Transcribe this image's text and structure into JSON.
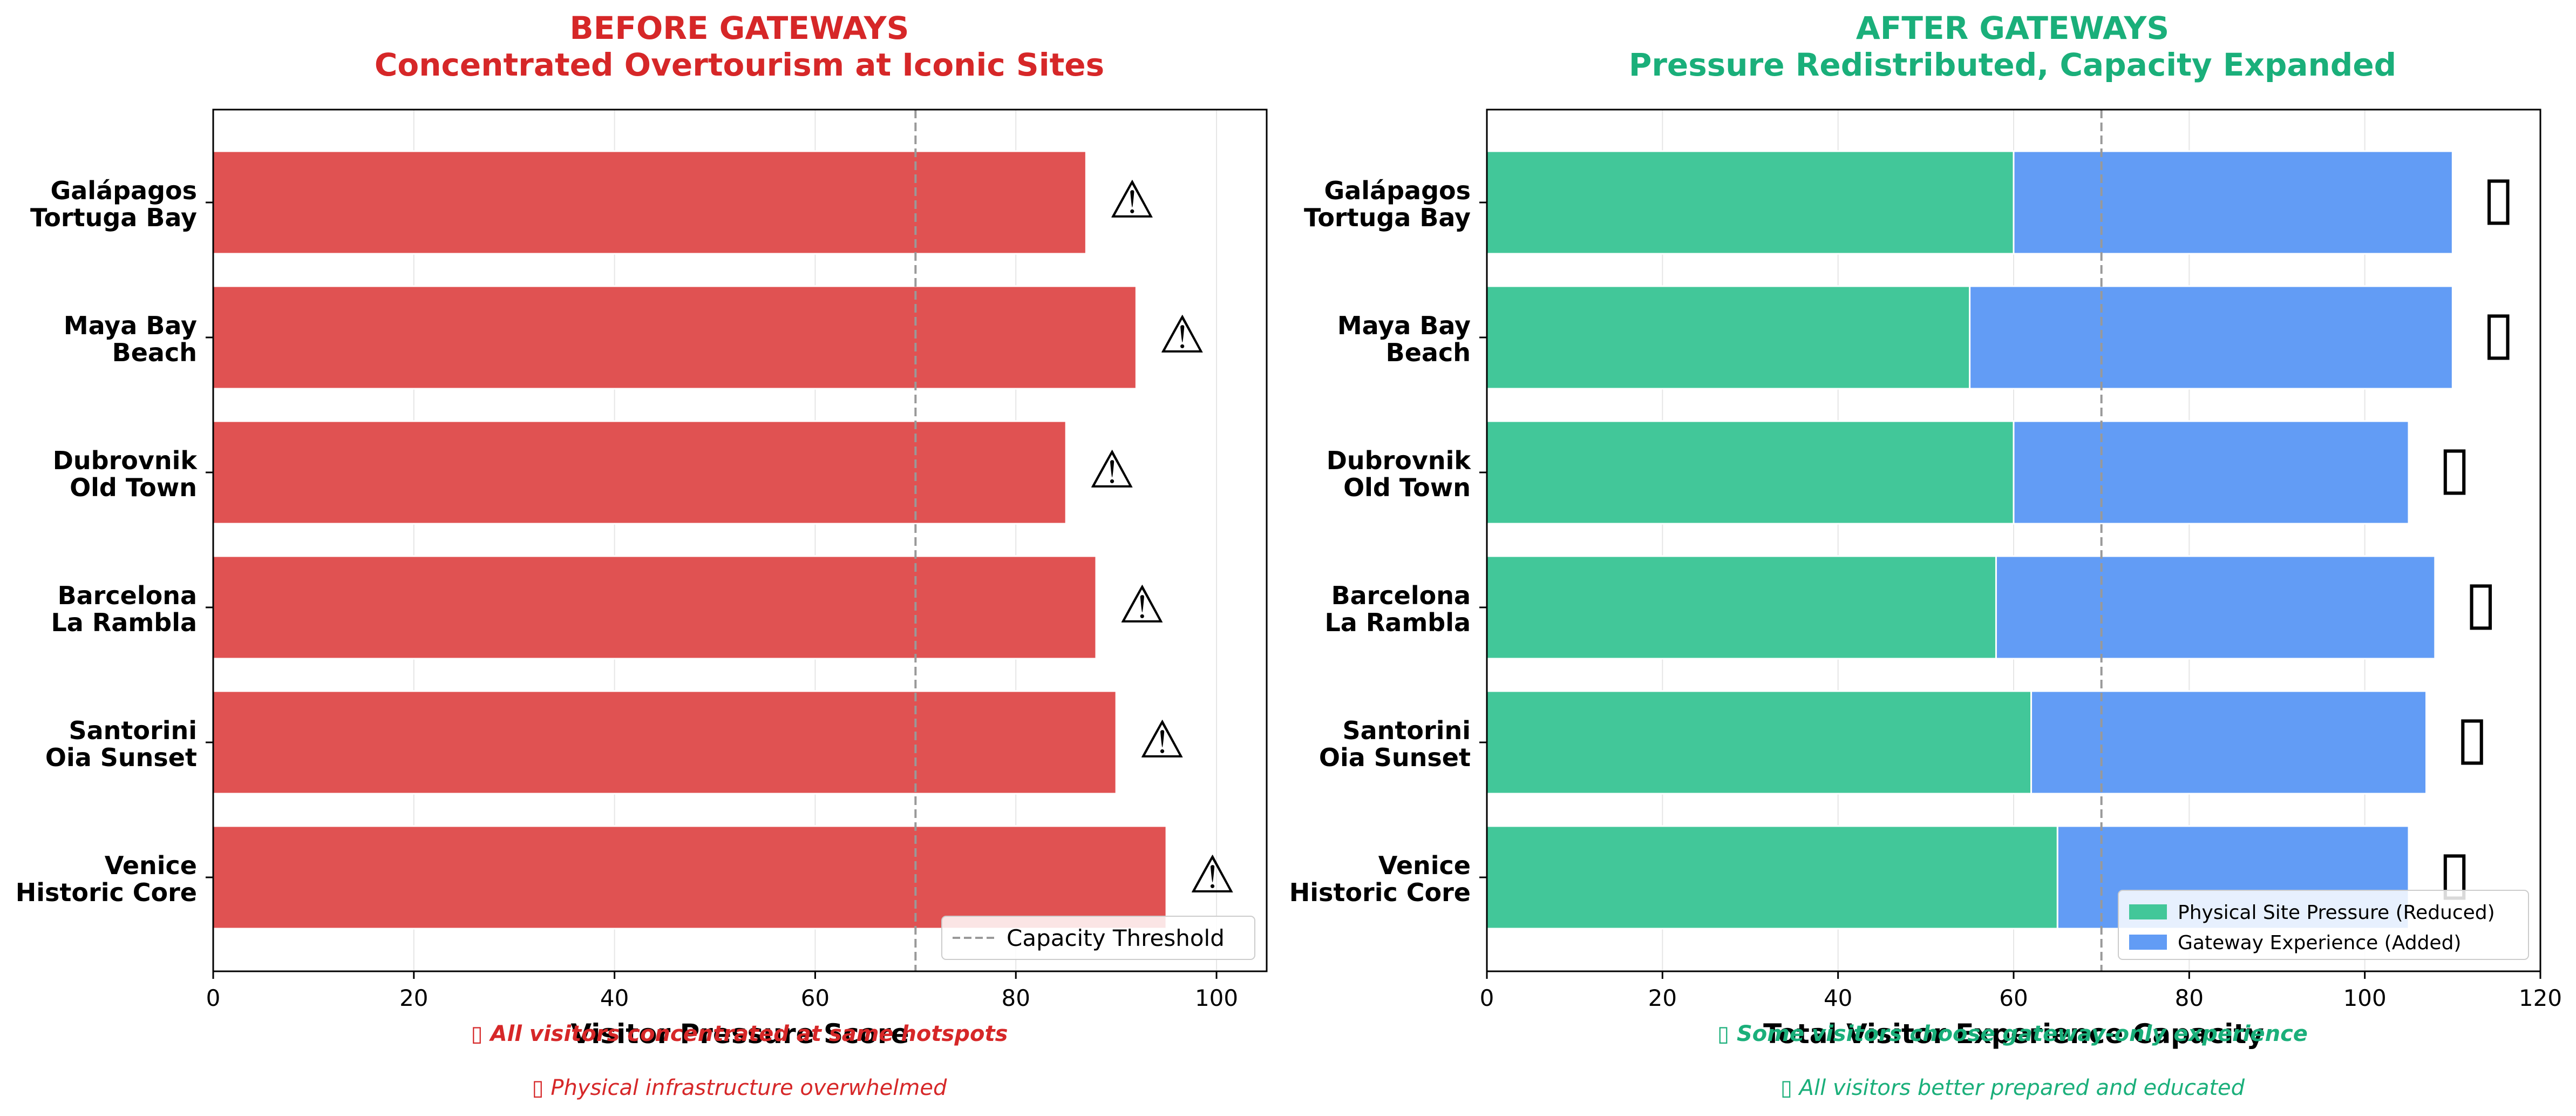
{
  "chart_data": [
    {
      "type": "bar",
      "orientation": "horizontal",
      "title": "BEFORE GATEWAYS",
      "subtitle": "Concentrated Overtourism at Iconic Sites",
      "title_color": "#d62728",
      "xlabel": "Visitor Pressure Score",
      "ylabel": "",
      "xlim": [
        0,
        105
      ],
      "xticks": [
        0,
        20,
        40,
        60,
        80,
        100
      ],
      "grid": "vertical",
      "categories": [
        "Galápagos\nTortuga Bay",
        "Maya Bay\nBeach",
        "Dubrovnik\nOld Town",
        "Barcelona\nLa Rambla",
        "Santorini\nOia Sunset",
        "Venice\nHistoric Core"
      ],
      "series": [
        {
          "values": [
            87,
            92,
            85,
            88,
            90,
            95
          ],
          "color": "#e05252"
        }
      ],
      "bar_markers": [
        "⚠",
        "⚠",
        "⚠",
        "⚠",
        "⚠",
        "⚠"
      ],
      "reference_line": {
        "value": 70,
        "label": "Capacity Threshold",
        "style": "dashed",
        "color": "#999999"
      },
      "legend": {
        "placement": "lower-right",
        "entries": [
          "Capacity Threshold"
        ]
      },
      "notes": [
        "▯ All visitors concentrated at same hotspots",
        "▯ Physical infrastructure overwhelmed"
      ],
      "notes_color": "#d62728"
    },
    {
      "type": "bar",
      "orientation": "horizontal",
      "stacked": true,
      "title": "AFTER GATEWAYS",
      "subtitle": "Pressure Redistributed, Capacity Expanded",
      "title_color": "#1aaf7a",
      "xlabel": "Total Visitor Experience Capacity",
      "ylabel": "",
      "xlim": [
        0,
        120
      ],
      "xticks": [
        0,
        20,
        40,
        60,
        80,
        100,
        120
      ],
      "grid": "vertical",
      "categories": [
        "Galápagos\nTortuga Bay",
        "Maya Bay\nBeach",
        "Dubrovnik\nOld Town",
        "Barcelona\nLa Rambla",
        "Santorini\nOia Sunset",
        "Venice\nHistoric Core"
      ],
      "series": [
        {
          "name": "Physical Site Pressure (Reduced)",
          "values": [
            60,
            55,
            60,
            58,
            62,
            65
          ],
          "color": "#42c799"
        },
        {
          "name": "Gateway Experience (Added)",
          "values": [
            50,
            55,
            45,
            50,
            45,
            40
          ],
          "color": "#629cf5"
        }
      ],
      "bar_markers": [
        "▯",
        "▯",
        "▯",
        "▯",
        "▯",
        "▯"
      ],
      "reference_line": {
        "value": 70,
        "style": "dashed",
        "color": "#999999"
      },
      "legend": {
        "placement": "lower-right",
        "entries": [
          "Physical Site Pressure (Reduced)",
          "Gateway Experience (Added)"
        ]
      },
      "notes": [
        "▯ Some visitors choose gateway-only experience",
        "▯ All visitors better prepared and educated"
      ],
      "notes_color": "#1aaf7a"
    }
  ]
}
